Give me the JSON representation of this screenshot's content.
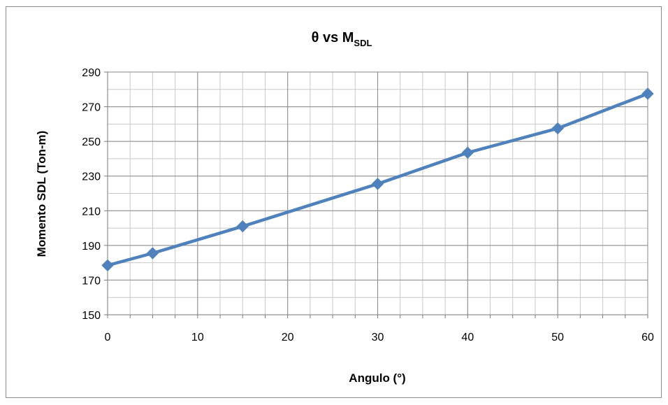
{
  "chart_data": {
    "type": "line",
    "title_main": "θ vs M",
    "title_sub": "SDL",
    "xlabel": "Angulo (°)",
    "ylabel": "Momento SDL (Ton-m)",
    "xlim": [
      0,
      60
    ],
    "ylim": [
      150,
      290
    ],
    "x_ticks": [
      0,
      10,
      20,
      30,
      40,
      50,
      60
    ],
    "y_ticks": [
      150,
      170,
      190,
      210,
      230,
      250,
      270,
      290
    ],
    "x_minor_step": 2.5,
    "y_minor_step": 10,
    "grid": true,
    "legend": "none",
    "series_color": "#4f81bd",
    "series": [
      {
        "x": [
          0,
          5,
          15,
          30,
          40,
          50,
          60
        ],
        "values": [
          178.5,
          185.5,
          201,
          225.5,
          243.5,
          257.5,
          277.5
        ],
        "marker": "diamond"
      }
    ]
  }
}
